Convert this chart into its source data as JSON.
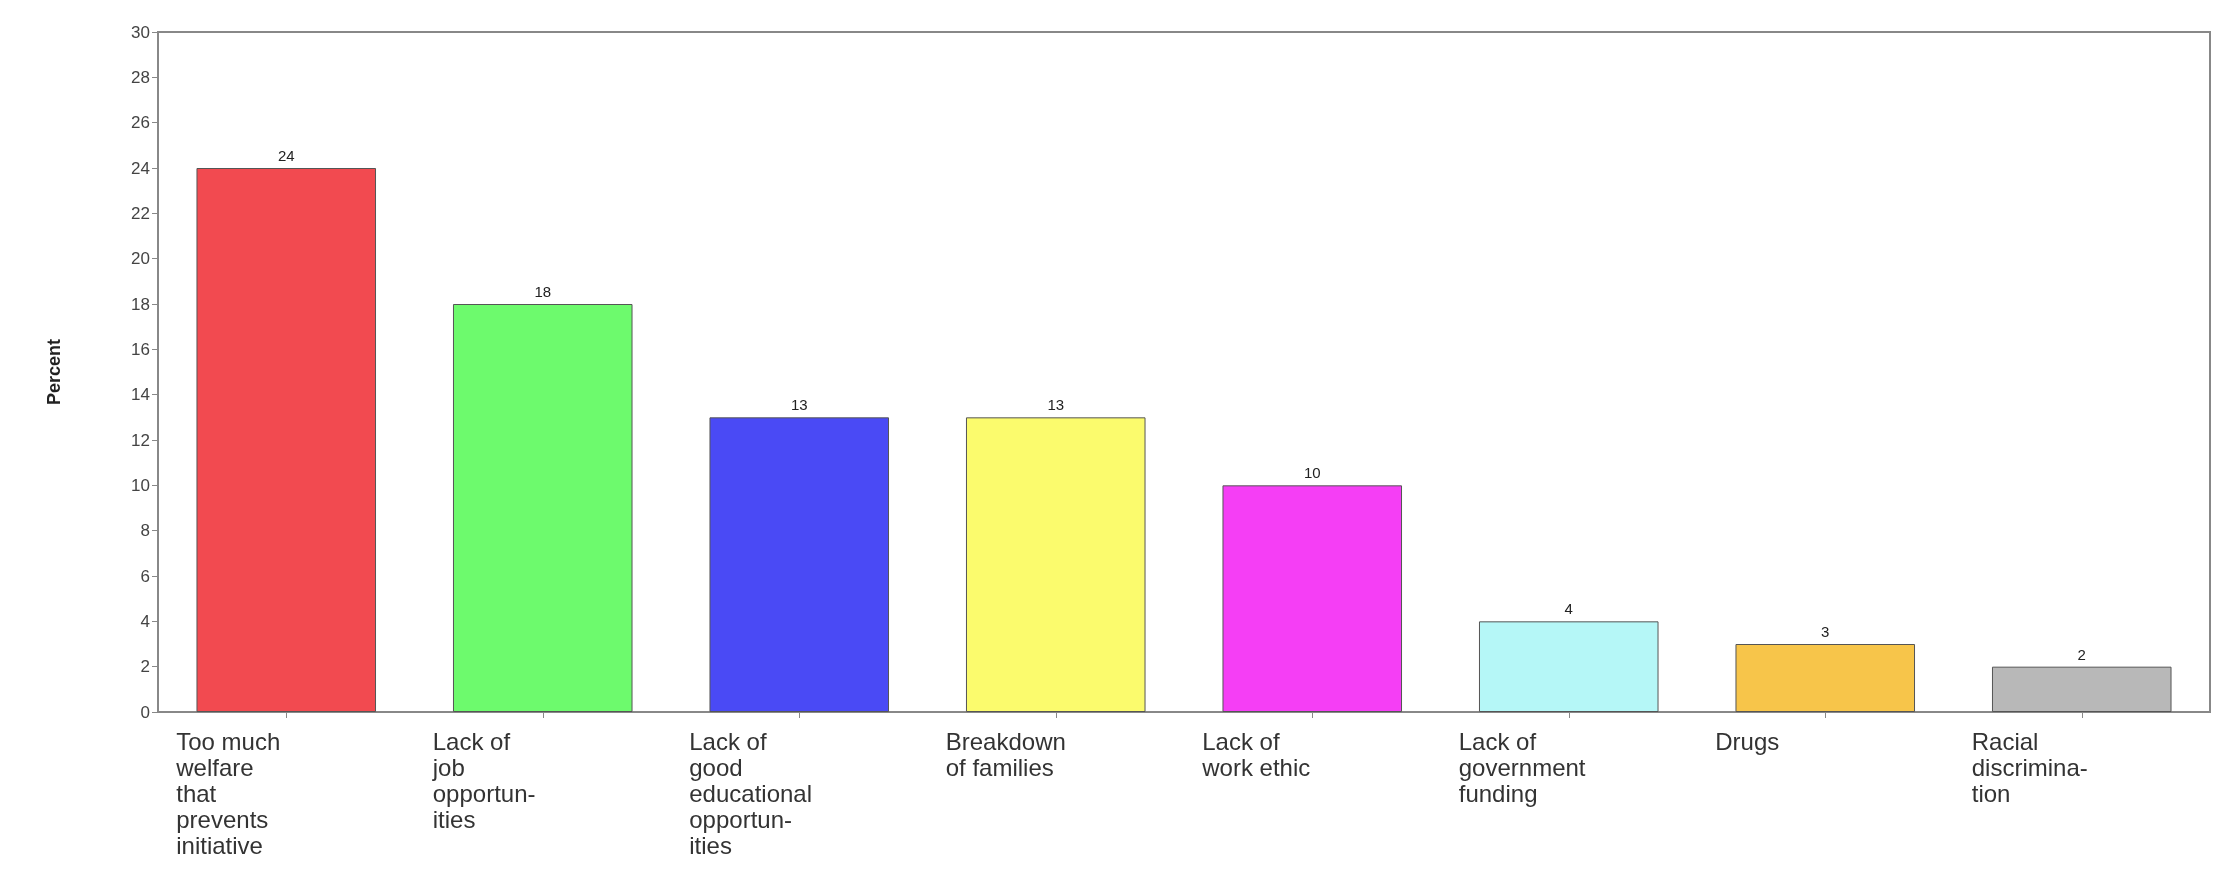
{
  "chart_data": {
    "type": "bar",
    "ylabel": "Percent",
    "categories": [
      "Too much\nwelfare\nthat\nprevents\ninitiative",
      "Lack of\njob\nopportun-\nities",
      "Lack of\ngood\neducational\nopportun-\nities",
      "Breakdown\nof families",
      "Lack of\nwork ethic",
      "Lack of\ngovernment\nfunding",
      "Drugs",
      "Racial\ndiscrimina-\ntion"
    ],
    "values": [
      24,
      18,
      13,
      13,
      10,
      4,
      3,
      2
    ],
    "colors": [
      "#f24a50",
      "#6dfa6d",
      "#4a4af5",
      "#fbfb6d",
      "#f53ef5",
      "#b5f7f7",
      "#f7c54a",
      "#b8b8b8"
    ],
    "ylim": [
      0,
      30
    ],
    "yticks": [
      0,
      2,
      4,
      6,
      8,
      10,
      12,
      14,
      16,
      18,
      20,
      22,
      24,
      26,
      28,
      30
    ],
    "data_labels": true
  }
}
